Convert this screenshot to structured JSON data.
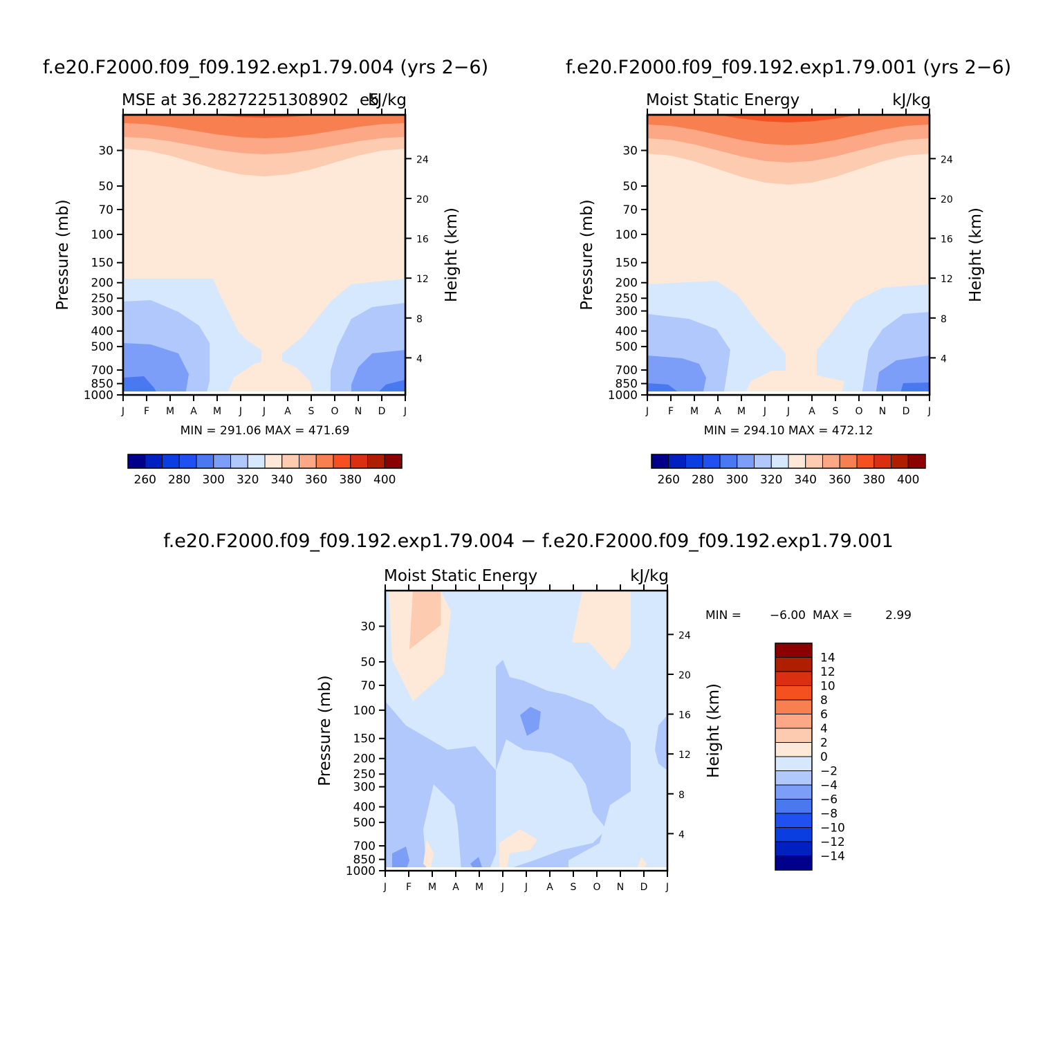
{
  "chart_data": [
    {
      "type": "heatmap",
      "panel": "top-left",
      "title": "f.e20.F2000.f09_f09.192.exp1.79.004 (yrs 2−6)",
      "subtitle_left": "MSE at 36.28272251308902",
      "subtitle_right": "kJ/kg",
      "overlap_text": "e5",
      "ylabel": "Pressure (mb)",
      "ylabel_right": "Height (km)",
      "x_ticks": [
        "J",
        "F",
        "M",
        "A",
        "M",
        "J",
        "J",
        "A",
        "S",
        "O",
        "N",
        "D",
        "J"
      ],
      "y_ticks": [
        "30",
        "50",
        "70",
        "100",
        "150",
        "200",
        "250",
        "300",
        "400",
        "500",
        "700",
        "850",
        "1000"
      ],
      "y_ticks_right": [
        "24",
        "20",
        "16",
        "12",
        "8",
        "4"
      ],
      "stats": "MIN = 291.06 MAX = 471.69",
      "colorbar_levels": [
        250,
        260,
        270,
        280,
        290,
        300,
        310,
        320,
        330,
        340,
        350,
        360,
        370,
        380,
        390,
        400
      ],
      "colorbar_labels": [
        "260",
        "280",
        "300",
        "320",
        "340",
        "360",
        "380",
        "400"
      ],
      "min": 291.06,
      "max": 471.69
    },
    {
      "type": "heatmap",
      "panel": "top-right",
      "title": "f.e20.F2000.f09_f09.192.exp1.79.001 (yrs 2−6)",
      "subtitle_left": "Moist Static Energy",
      "subtitle_right": "kJ/kg",
      "ylabel": "Pressure (mb)",
      "ylabel_right": "Height (km)",
      "x_ticks": [
        "J",
        "F",
        "M",
        "A",
        "M",
        "J",
        "J",
        "A",
        "S",
        "O",
        "N",
        "D",
        "J"
      ],
      "y_ticks": [
        "30",
        "50",
        "70",
        "100",
        "150",
        "200",
        "250",
        "300",
        "400",
        "500",
        "700",
        "850",
        "1000"
      ],
      "y_ticks_right": [
        "24",
        "20",
        "16",
        "12",
        "8",
        "4"
      ],
      "stats": "MIN = 294.10 MAX = 472.12",
      "colorbar_labels": [
        "260",
        "280",
        "300",
        "320",
        "340",
        "360",
        "380",
        "400"
      ],
      "min": 294.1,
      "max": 472.12
    },
    {
      "type": "heatmap",
      "panel": "bottom-difference",
      "title": "f.e20.F2000.f09_f09.192.exp1.79.004 − f.e20.F2000.f09_f09.192.exp1.79.001",
      "subtitle_left": "Moist Static Energy",
      "subtitle_right": "kJ/kg",
      "ylabel": "Pressure (mb)",
      "ylabel_right": "Height (km)",
      "x_ticks": [
        "J",
        "F",
        "M",
        "A",
        "M",
        "J",
        "J",
        "A",
        "S",
        "O",
        "N",
        "D",
        "J"
      ],
      "y_ticks": [
        "30",
        "50",
        "70",
        "100",
        "150",
        "200",
        "250",
        "300",
        "400",
        "500",
        "700",
        "850",
        "1000"
      ],
      "y_ticks_right": [
        "24",
        "20",
        "16",
        "12",
        "8",
        "4"
      ],
      "stats_min_label": "MIN =",
      "stats_min_value": "−6.00",
      "stats_max_label": "MAX =",
      "stats_max_value": "2.99",
      "colorbar_labels": [
        "14",
        "12",
        "10",
        "8",
        "6",
        "4",
        "2",
        "0",
        "−2",
        "−4",
        "−6",
        "−8",
        "−10",
        "−12",
        "−14"
      ],
      "min": -6.0,
      "max": 2.99
    }
  ],
  "palette": [
    "#00008b",
    "#0020c0",
    "#0a3ee0",
    "#2050f0",
    "#4a78f0",
    "#7c9ef8",
    "#b0c8fc",
    "#d6e8fe",
    "#fee8d8",
    "#fdcbb0",
    "#fca886",
    "#f88050",
    "#f45020",
    "#d83010",
    "#b01e00",
    "#8b0000"
  ]
}
